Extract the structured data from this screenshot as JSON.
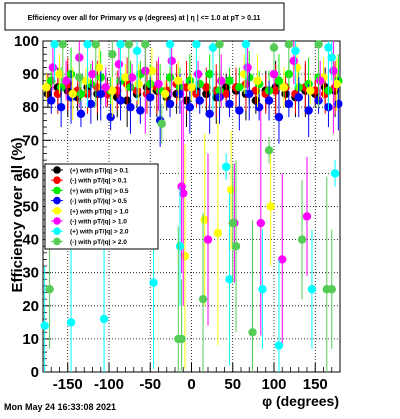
{
  "chart_data": {
    "type": "scatter",
    "title": "Efficiency over all for Primary vs φ (degrees) at | η | <= 1.0 at pT > 0.11",
    "xlabel": "φ (degrees)",
    "ylabel": "Efficiency over all (%)",
    "xlim": [
      -180,
      180
    ],
    "ylim": [
      0,
      100
    ],
    "xticks": [
      -150,
      -100,
      -50,
      0,
      50,
      100,
      150
    ],
    "yticks": [
      0,
      10,
      20,
      30,
      40,
      50,
      60,
      70,
      80,
      90,
      100
    ],
    "grid": true,
    "legend_position": "middle-left",
    "footer": "Mon May 24 16:33:08 2021",
    "series": [
      {
        "name": "(+) with pT/|q| > 0.1",
        "color": "#000000",
        "x": [
          -174,
          -162,
          -150,
          -138,
          -126,
          -114,
          -102,
          -90,
          -78,
          -66,
          -54,
          -42,
          -30,
          -18,
          -6,
          6,
          18,
          30,
          42,
          54,
          66,
          78,
          90,
          102,
          114,
          126,
          138,
          150,
          162,
          174
        ],
        "y": [
          84,
          86,
          85,
          83,
          86,
          84,
          85,
          83,
          82,
          84,
          86,
          85,
          83,
          84,
          82,
          85,
          84,
          83,
          86,
          85,
          84,
          82,
          85,
          86,
          84,
          83,
          85,
          84,
          86,
          85
        ]
      },
      {
        "name": "(-) with pT/|q| > 0.1",
        "color": "#ff0000",
        "x": [
          -174,
          -162,
          -150,
          -138,
          -126,
          -114,
          -102,
          -90,
          -78,
          -66,
          -54,
          -42,
          -30,
          -18,
          -6,
          6,
          18,
          30,
          42,
          54,
          66,
          78,
          90,
          102,
          114,
          126,
          138,
          150,
          162,
          174
        ],
        "y": [
          86,
          84,
          87,
          85,
          84,
          86,
          84,
          85,
          87,
          85,
          84,
          86,
          85,
          87,
          86,
          84,
          86,
          85,
          84,
          86,
          87,
          85,
          84,
          85,
          86,
          84,
          86,
          85,
          84,
          86
        ]
      },
      {
        "name": "(+) with pT/|q| > 0.5",
        "color": "#00ee00",
        "x": [
          -170,
          -158,
          -146,
          -134,
          -122,
          -110,
          -98,
          -86,
          -74,
          -62,
          -50,
          -38,
          -26,
          -14,
          -2,
          10,
          22,
          34,
          46,
          58,
          70,
          82,
          94,
          106,
          118,
          130,
          142,
          154,
          166,
          178
        ],
        "y": [
          88,
          86,
          90,
          84,
          87,
          89,
          85,
          88,
          86,
          90,
          87,
          85,
          89,
          86,
          88,
          87,
          90,
          85,
          88,
          86,
          89,
          87,
          85,
          88,
          90,
          86,
          87,
          89,
          85,
          88
        ]
      },
      {
        "name": "(-) with pT/|q| > 0.5",
        "color": "#0000ff",
        "x": [
          -170,
          -158,
          -146,
          -134,
          -122,
          -110,
          -98,
          -86,
          -74,
          -62,
          -50,
          -38,
          -26,
          -14,
          -2,
          10,
          22,
          34,
          46,
          58,
          70,
          82,
          94,
          106,
          118,
          130,
          142,
          154,
          166,
          178
        ],
        "y": [
          82,
          80,
          83,
          78,
          81,
          84,
          77,
          82,
          80,
          79,
          83,
          76,
          81,
          84,
          80,
          82,
          78,
          83,
          81,
          79,
          84,
          80,
          82,
          77,
          81,
          83,
          79,
          82,
          80,
          81
        ]
      },
      {
        "name": "(+) with pT/|q| > 1.0",
        "color": "#ffff00",
        "x": [
          -176,
          -160,
          -144,
          -128,
          -112,
          -96,
          -80,
          -64,
          -48,
          -32,
          -16,
          -8,
          0,
          16,
          32,
          48,
          64,
          80,
          96,
          112,
          128,
          144,
          160,
          176
        ],
        "y": [
          86,
          90,
          84,
          88,
          92,
          85,
          89,
          87,
          91,
          84,
          88,
          35,
          86,
          46,
          42,
          55,
          90,
          88,
          50,
          86,
          92,
          85,
          89,
          87
        ]
      },
      {
        "name": "(-) with pT/|q| > 1.0",
        "color": "#ff00ff",
        "x": [
          -168,
          -152,
          -136,
          -120,
          -104,
          -88,
          -72,
          -56,
          -40,
          -24,
          -12,
          -10,
          8,
          20,
          36,
          52,
          68,
          84,
          100,
          110,
          124,
          140,
          156,
          172
        ],
        "y": [
          92,
          88,
          95,
          90,
          86,
          93,
          89,
          91,
          87,
          94,
          56,
          54,
          90,
          40,
          88,
          45,
          92,
          45,
          90,
          34,
          94,
          47,
          88,
          91
        ]
      },
      {
        "name": "(+) with pT/|q| > 2.0",
        "color": "#00ffff",
        "x": [
          -178,
          -166,
          -146,
          -126,
          -106,
          -86,
          -66,
          -46,
          -26,
          -14,
          6,
          26,
          42,
          46,
          66,
          86,
          106,
          126,
          146,
          166,
          170,
          174
        ],
        "y": [
          14,
          99,
          15,
          99,
          16,
          99,
          97,
          27,
          99,
          38,
          99,
          98,
          62,
          28,
          99,
          25,
          8,
          97,
          25,
          98,
          95,
          60
        ]
      },
      {
        "name": "(-) with pT/|q| > 2.0",
        "color": "#55cc55",
        "x": [
          -172,
          -156,
          -136,
          -116,
          -96,
          -76,
          -56,
          -36,
          -16,
          -12,
          14,
          34,
          50,
          54,
          74,
          94,
          100,
          118,
          134,
          154,
          164,
          170
        ],
        "y": [
          25,
          99,
          89,
          99,
          96,
          99,
          99,
          75,
          10,
          10,
          22,
          99,
          45,
          38,
          12,
          67,
          98,
          99,
          40,
          99,
          25,
          25
        ]
      }
    ]
  }
}
